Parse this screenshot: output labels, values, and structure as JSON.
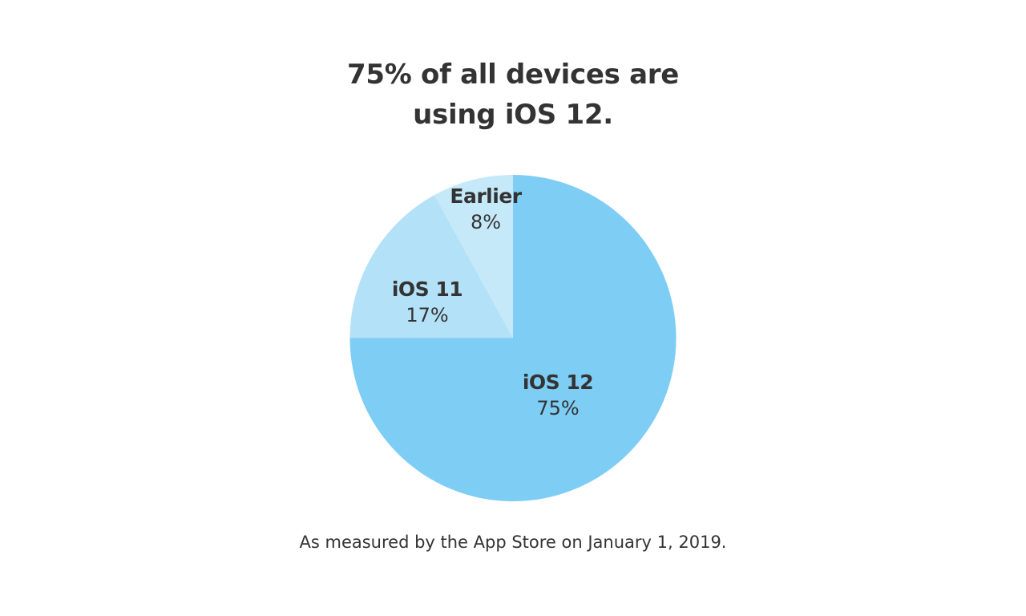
{
  "title": {
    "line1": "75% of all devices are",
    "line2": "using iOS 12."
  },
  "footnote": "As measured by the App Store on January 1, 2019.",
  "colors": {
    "ios12": "#7ECDF5",
    "ios11": "#B3E1F8",
    "earlier": "#C6E9FA",
    "text": "#333333"
  },
  "slices": [
    {
      "name": "iOS 12",
      "percent": "75%",
      "color": "#7ECDF5"
    },
    {
      "name": "iOS 11",
      "percent": "17%",
      "color": "#B3E1F8"
    },
    {
      "name": "Earlier",
      "percent": "8%",
      "color": "#C6E9FA"
    }
  ],
  "chart_data": {
    "type": "pie",
    "title": "75% of all devices are using iOS 12.",
    "categories": [
      "iOS 12",
      "iOS 11",
      "Earlier"
    ],
    "values": [
      75,
      17,
      8
    ],
    "unit": "%",
    "colors": [
      "#7ECDF5",
      "#B3E1F8",
      "#C6E9FA"
    ],
    "start_angle": "12 o'clock, clockwise",
    "legend": "inline labels",
    "annotation": "As measured by the App Store on January 1, 2019."
  }
}
